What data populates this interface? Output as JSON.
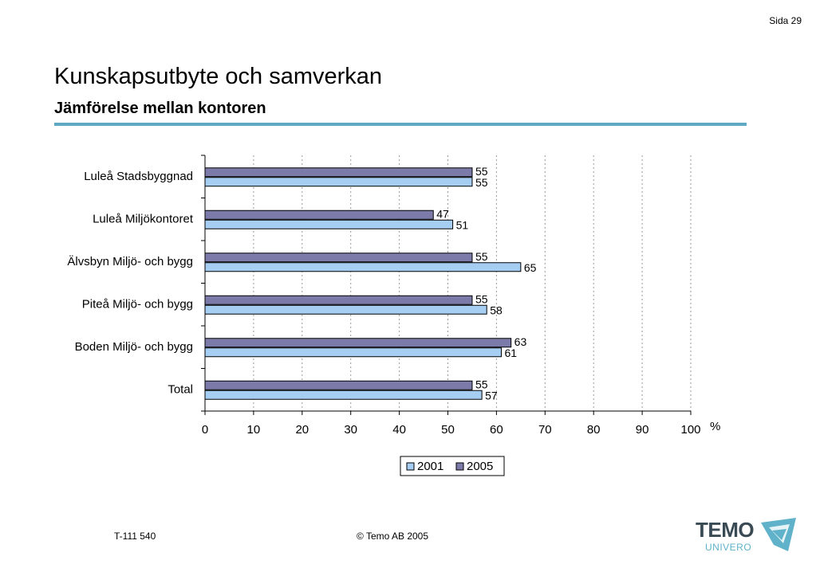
{
  "page": {
    "page_number": "Sida 29",
    "title": "Kunskapsutbyte och samverkan",
    "subtitle": "Jämförelse mellan kontoren",
    "footer_code": "T-111 540",
    "footer_copyright": "©  Temo AB 2005",
    "logo_text": "TEMO",
    "logo_subtext": "UNIVERO"
  },
  "colors": {
    "rule": "#5ea8c4",
    "series_2001": "#a6cdf2",
    "series_2005": "#7b7aa8"
  },
  "chart_data": {
    "type": "bar",
    "orientation": "horizontal",
    "categories": [
      "Luleå Stadsbyggnad",
      "Luleå Miljökontoret",
      "Älvsbyn Miljö- och bygg",
      "Piteå Miljö- och bygg",
      "Boden Miljö- och bygg",
      "Total"
    ],
    "series": [
      {
        "name": "2001",
        "values": [
          55,
          51,
          65,
          58,
          61,
          57
        ],
        "color": "#a6cdf2"
      },
      {
        "name": "2005",
        "values": [
          55,
          47,
          55,
          55,
          63,
          55
        ],
        "color": "#7b7aa8"
      }
    ],
    "xlim": [
      0,
      100
    ],
    "xticks": [
      0,
      10,
      20,
      30,
      40,
      50,
      60,
      70,
      80,
      90,
      100
    ],
    "xunit": "%",
    "grid": "vertical dashed",
    "legend": "bottom-center"
  }
}
